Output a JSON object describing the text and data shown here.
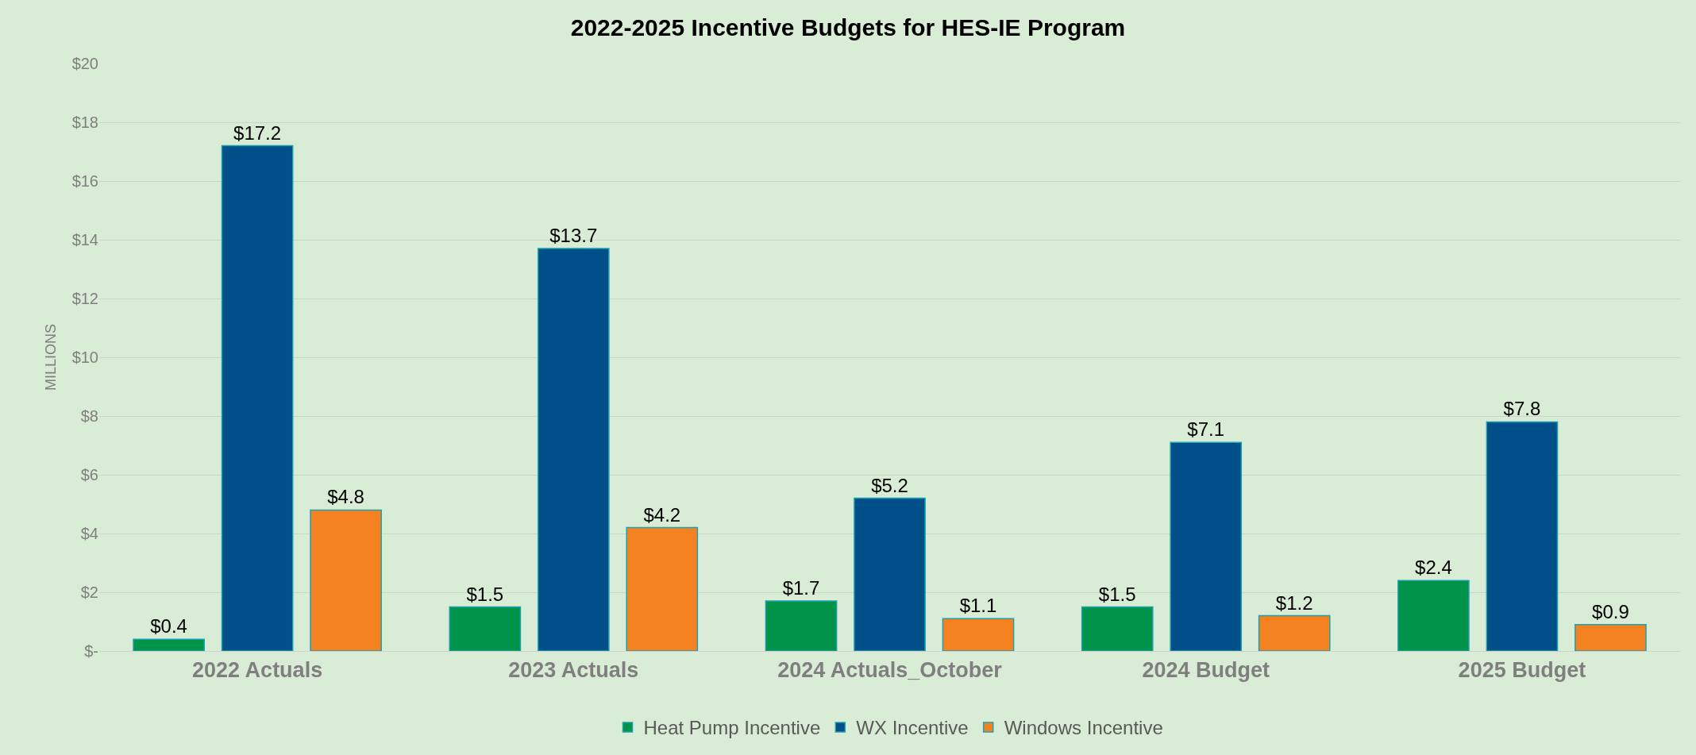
{
  "chart_data": {
    "type": "bar",
    "title": "2022-2025 Incentive Budgets for HES-IE Program",
    "ylabel": "MILLIONS",
    "categories": [
      "2022 Actuals",
      "2023 Actuals",
      "2024 Actuals_October",
      "2024 Budget",
      "2025 Budget"
    ],
    "series": [
      {
        "name": "Heat Pump Incentive",
        "color": "#00934a",
        "values": [
          0.4,
          1.5,
          1.7,
          1.5,
          2.4
        ],
        "value_labels": [
          "$0.4",
          "$1.5",
          "$1.7",
          "$1.5",
          "$2.4"
        ]
      },
      {
        "name": "WX Incentive",
        "color": "#004f88",
        "values": [
          17.2,
          13.7,
          5.2,
          7.1,
          7.8
        ],
        "value_labels": [
          "$17.2",
          "$13.7",
          "$5.2",
          "$7.1",
          "$7.8"
        ]
      },
      {
        "name": "Windows Incentive",
        "color": "#f58220",
        "values": [
          4.8,
          4.2,
          1.1,
          1.2,
          0.9
        ],
        "value_labels": [
          "$4.8",
          "$4.2",
          "$1.1",
          "$1.2",
          "$0.9"
        ]
      }
    ],
    "ylim": [
      0,
      20
    ],
    "yticks": [
      {
        "value": 0,
        "label": "$-"
      },
      {
        "value": 2,
        "label": "$2"
      },
      {
        "value": 4,
        "label": "$4"
      },
      {
        "value": 6,
        "label": "$6"
      },
      {
        "value": 8,
        "label": "$8"
      },
      {
        "value": 10,
        "label": "$10"
      },
      {
        "value": 12,
        "label": "$12"
      },
      {
        "value": 14,
        "label": "$14"
      },
      {
        "value": 16,
        "label": "$16"
      },
      {
        "value": 18,
        "label": "$18"
      },
      {
        "value": 20,
        "label": "$20"
      }
    ],
    "grid": "y",
    "legend": "bottom"
  }
}
